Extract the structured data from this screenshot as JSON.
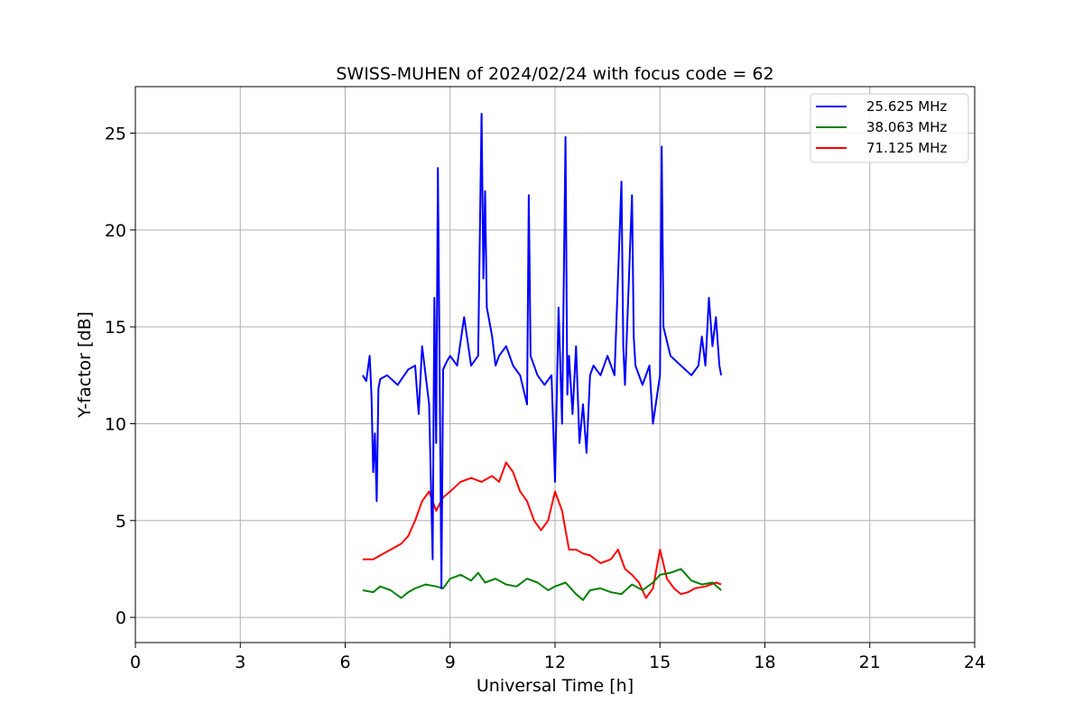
{
  "chart_data": {
    "type": "line",
    "title": "SWISS-MUHEN of 2024/02/24 with focus code = 62",
    "xlabel": "Universal Time [h]",
    "ylabel": "Y-factor [dB]",
    "xlim": [
      0,
      24
    ],
    "ylim": [
      -1.3,
      27.4
    ],
    "xticks": [
      0,
      3,
      6,
      9,
      12,
      15,
      18,
      21,
      24
    ],
    "yticks": [
      0,
      5,
      10,
      15,
      20,
      25
    ],
    "grid": true,
    "legend_position": "top-right",
    "series": [
      {
        "name": "25.625 MHz",
        "color": "#0000ff",
        "x": [
          6.5,
          6.6,
          6.7,
          6.75,
          6.8,
          6.85,
          6.9,
          6.95,
          7.0,
          7.2,
          7.5,
          7.8,
          8.0,
          8.1,
          8.2,
          8.3,
          8.4,
          8.5,
          8.55,
          8.6,
          8.65,
          8.7,
          8.75,
          8.8,
          8.9,
          9.0,
          9.2,
          9.4,
          9.6,
          9.8,
          9.9,
          9.95,
          10.0,
          10.05,
          10.1,
          10.2,
          10.3,
          10.4,
          10.6,
          10.8,
          11.0,
          11.2,
          11.25,
          11.3,
          11.5,
          11.7,
          11.9,
          12.0,
          12.1,
          12.2,
          12.3,
          12.35,
          12.4,
          12.5,
          12.6,
          12.7,
          12.8,
          12.9,
          13.0,
          13.1,
          13.3,
          13.5,
          13.7,
          13.9,
          13.95,
          14.0,
          14.2,
          14.25,
          14.3,
          14.5,
          14.7,
          14.8,
          15.0,
          15.05,
          15.1,
          15.3,
          15.6,
          15.9,
          16.1,
          16.2,
          16.3,
          16.4,
          16.5,
          16.6,
          16.7,
          16.75
        ],
        "y": [
          12.5,
          12.2,
          13.5,
          11.5,
          7.5,
          9.5,
          6.0,
          11.8,
          12.3,
          12.5,
          12.0,
          12.8,
          13.0,
          10.5,
          14.0,
          12.5,
          11.0,
          3.0,
          16.5,
          9.0,
          23.2,
          13.0,
          1.5,
          12.8,
          13.2,
          13.5,
          13.0,
          15.5,
          13.0,
          13.5,
          26.0,
          17.5,
          22.0,
          16.0,
          15.5,
          14.5,
          13.0,
          13.5,
          14.0,
          13.0,
          12.5,
          11.0,
          21.8,
          13.5,
          12.5,
          12.0,
          12.5,
          7.0,
          16.0,
          10.0,
          24.8,
          11.5,
          13.5,
          10.5,
          14.0,
          9.0,
          11.0,
          8.5,
          12.5,
          13.0,
          12.5,
          13.5,
          12.5,
          22.5,
          14.0,
          12.0,
          21.8,
          14.5,
          13.0,
          12.0,
          13.0,
          10.0,
          12.5,
          24.3,
          15.0,
          13.5,
          13.0,
          12.5,
          13.0,
          14.5,
          13.0,
          16.5,
          14.0,
          15.5,
          13.0,
          12.5
        ]
      },
      {
        "name": "38.063 MHz",
        "color": "#008000",
        "x": [
          6.5,
          6.8,
          7.0,
          7.3,
          7.6,
          7.8,
          8.0,
          8.3,
          8.6,
          8.8,
          9.0,
          9.3,
          9.6,
          9.8,
          10.0,
          10.3,
          10.6,
          10.9,
          11.2,
          11.5,
          11.8,
          12.0,
          12.3,
          12.6,
          12.8,
          13.0,
          13.3,
          13.6,
          13.9,
          14.2,
          14.5,
          14.8,
          15.0,
          15.3,
          15.6,
          15.9,
          16.2,
          16.5,
          16.75
        ],
        "y": [
          1.4,
          1.3,
          1.6,
          1.4,
          1.0,
          1.3,
          1.5,
          1.7,
          1.6,
          1.5,
          2.0,
          2.2,
          1.9,
          2.3,
          1.8,
          2.0,
          1.7,
          1.6,
          2.0,
          1.8,
          1.4,
          1.6,
          1.8,
          1.2,
          0.9,
          1.4,
          1.5,
          1.3,
          1.2,
          1.7,
          1.4,
          1.8,
          2.2,
          2.3,
          2.5,
          1.9,
          1.7,
          1.8,
          1.4
        ]
      },
      {
        "name": "71.125 MHz",
        "color": "#ff0000",
        "x": [
          6.5,
          6.8,
          7.0,
          7.3,
          7.6,
          7.8,
          8.0,
          8.2,
          8.4,
          8.6,
          8.8,
          9.0,
          9.3,
          9.6,
          9.9,
          10.2,
          10.4,
          10.6,
          10.8,
          11.0,
          11.2,
          11.4,
          11.6,
          11.8,
          12.0,
          12.2,
          12.4,
          12.6,
          12.8,
          13.0,
          13.3,
          13.6,
          13.8,
          14.0,
          14.2,
          14.4,
          14.6,
          14.8,
          15.0,
          15.2,
          15.4,
          15.6,
          15.8,
          16.0,
          16.3,
          16.6,
          16.75
        ],
        "y": [
          3.0,
          3.0,
          3.2,
          3.5,
          3.8,
          4.2,
          5.0,
          6.0,
          6.5,
          5.5,
          6.2,
          6.5,
          7.0,
          7.2,
          7.0,
          7.3,
          7.0,
          8.0,
          7.5,
          6.5,
          6.0,
          5.0,
          4.5,
          5.0,
          6.5,
          5.5,
          3.5,
          3.5,
          3.3,
          3.2,
          2.8,
          3.0,
          3.5,
          2.5,
          2.2,
          1.8,
          1.0,
          1.5,
          3.5,
          2.0,
          1.5,
          1.2,
          1.3,
          1.5,
          1.6,
          1.8,
          1.7
        ]
      }
    ]
  }
}
